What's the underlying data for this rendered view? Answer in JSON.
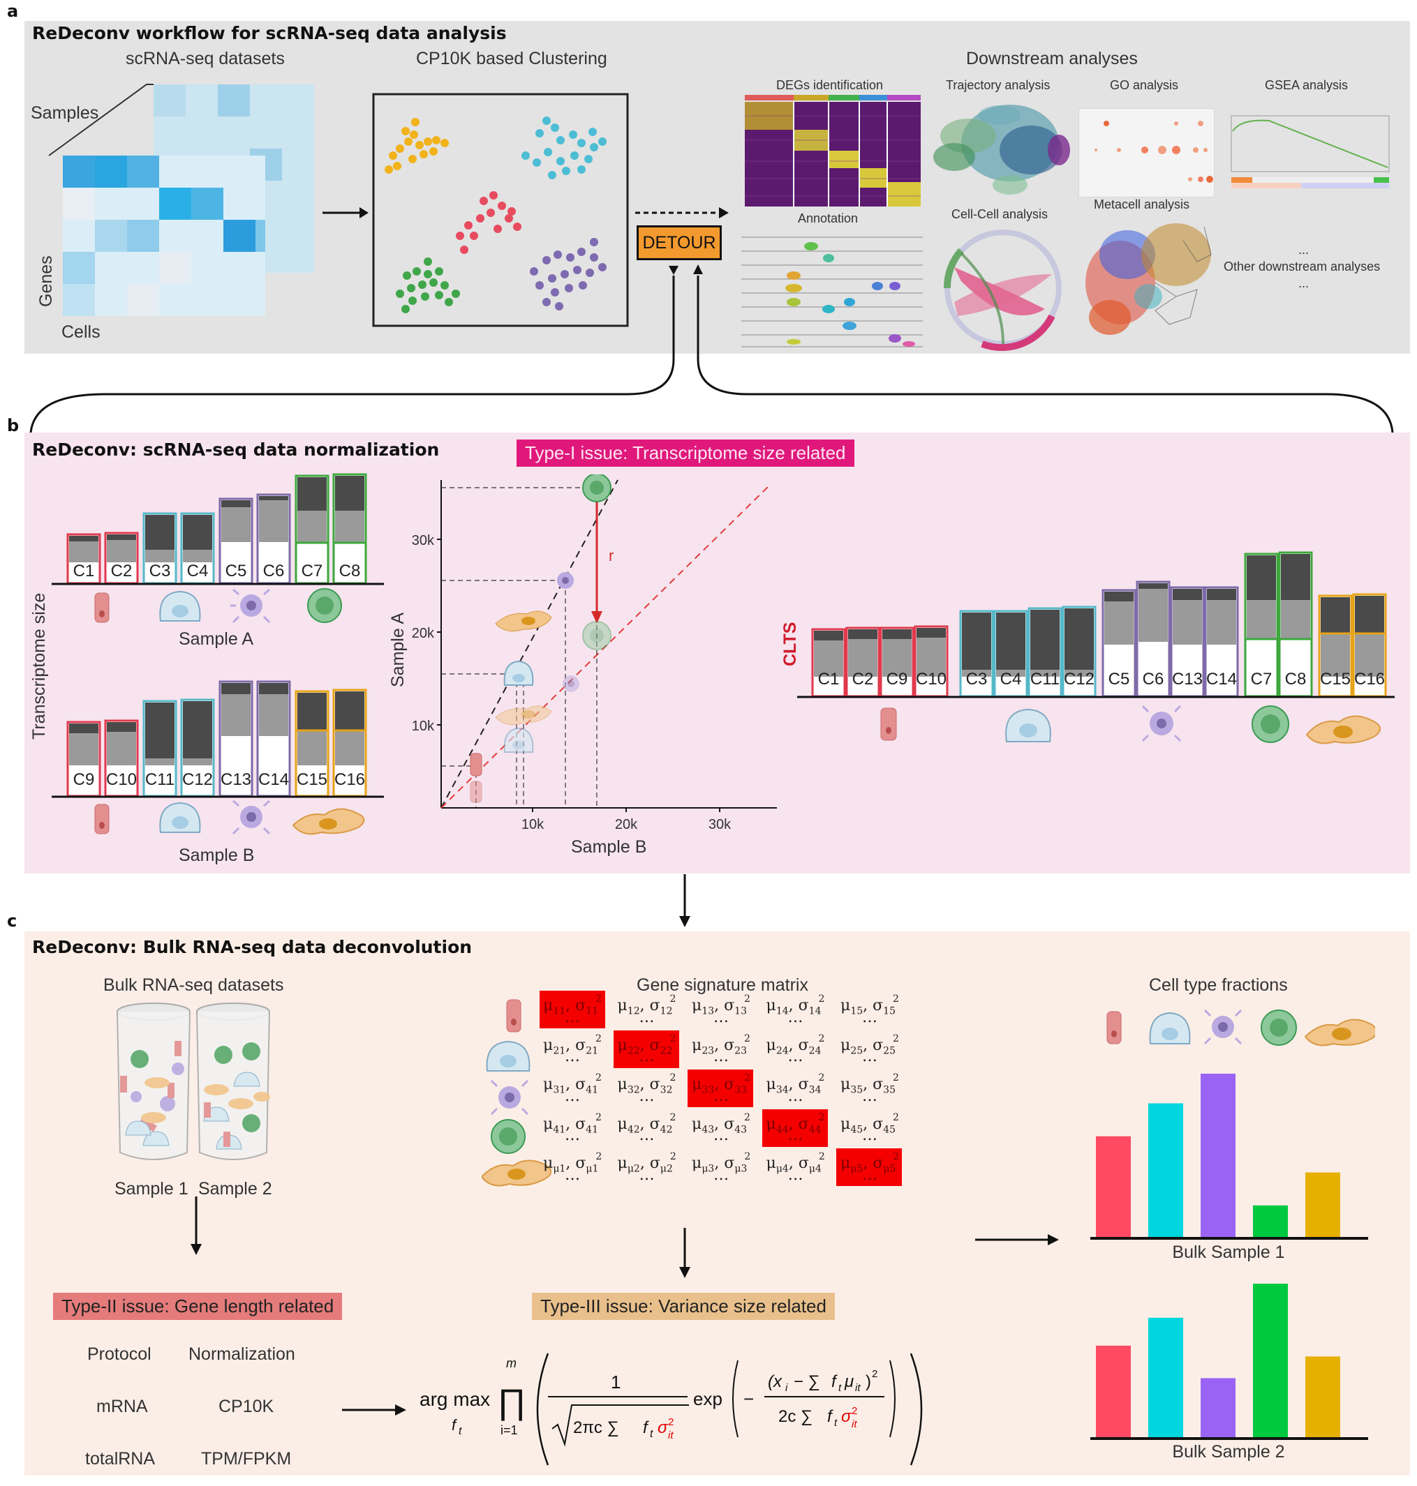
{
  "panel_a": {
    "letter": "a",
    "title": "ReDeconv workflow for scRNA-seq data analysis",
    "datasets_title": "scRNA-seq datasets",
    "samples_label": "Samples",
    "genes_label": "Genes",
    "cells_label": "Cells",
    "clustering_title": "CP10K based Clustering",
    "detour_label": "DETOUR",
    "downstream_title": "Downstream analyses",
    "degs": "DEGs identification",
    "trajectory": "Trajectory analysis",
    "go": "GO analysis",
    "gsea": "GSEA analysis",
    "annotation": "Annotation",
    "cellcell": "Cell-Cell analysis",
    "metacell": "Metacell analysis",
    "other_dots_top": "...",
    "other": "Other downstream analyses",
    "other_dots_bottom": "..."
  },
  "panel_b": {
    "letter": "b",
    "title": "ReDeconv: scRNA-seq data normalization",
    "issue": "Type-I issue: Transcriptome size related",
    "y_axis_label": "Transcriptome size",
    "sample_a": "Sample A",
    "sample_b": "Sample B",
    "clts_label": "CLTS",
    "sample_a_clusters": [
      "C1",
      "C2",
      "C3",
      "C4",
      "C5",
      "C6",
      "C7",
      "C8"
    ],
    "sample_b_clusters": [
      "C9",
      "C10",
      "C11",
      "C12",
      "C13",
      "C14",
      "C15",
      "C16"
    ],
    "clts_clusters": [
      "C1",
      "C2",
      "C9",
      "C10",
      "C3",
      "C4",
      "C11",
      "C12",
      "C5",
      "C6",
      "C13",
      "C14",
      "C7",
      "C8",
      "C15",
      "C16"
    ],
    "scatter": {
      "x_label": "Sample B",
      "y_label": "Sample A",
      "x_ticks": [
        "10k",
        "20k",
        "30k"
      ],
      "y_ticks": [
        "10k",
        "20k",
        "30k"
      ],
      "arrow_label": "r"
    }
  },
  "panel_c": {
    "letter": "c",
    "title": "ReDeconv: Bulk RNA-seq data deconvolution",
    "bulk_title": "Bulk RNA-seq datasets",
    "sample1": "Sample 1",
    "sample2": "Sample 2",
    "matrix_title": "Gene signature matrix",
    "fractions_title": "Cell type fractions",
    "issue2": "Type-II issue: Gene length related",
    "issue3": "Type-III issue: Variance size related",
    "table_headers": [
      "Protocol",
      "Normalization"
    ],
    "table_rows": [
      [
        "mRNA",
        "CP10K"
      ],
      [
        "totalRNA",
        "TPM/FPKM"
      ]
    ],
    "matrix_rows": [
      [
        [
          "11",
          "12",
          "13",
          "14",
          "15"
        ],
        [
          "11",
          "12",
          "13",
          "14",
          "15"
        ]
      ],
      [
        [
          "21",
          "22",
          "23",
          "24",
          "25"
        ],
        [
          "21",
          "22",
          "23",
          "24",
          "25"
        ]
      ],
      [
        [
          "31",
          "32",
          "33",
          "34",
          "35"
        ],
        [
          "41",
          "32",
          "33",
          "34",
          "35"
        ]
      ],
      [
        [
          "41",
          "42",
          "43",
          "44",
          "45"
        ],
        [
          "41",
          "42",
          "43",
          "44",
          "45"
        ]
      ],
      [
        [
          "μ1",
          "μ2",
          "μ3",
          "μ4",
          "μ5"
        ],
        [
          "μ1",
          "μ2",
          "μ3",
          "μ4",
          "μ5"
        ]
      ]
    ],
    "bulk1_label": "Bulk Sample 1",
    "bulk2_label": "Bulk Sample 2",
    "formula": {
      "argmax": "arg max",
      "sub": "f",
      "sub_t": "t",
      "prod_top": "m",
      "prod_bottom": "i=1",
      "numerator": "1",
      "sqrt_body": "2πc ∑",
      "exp": "exp"
    }
  },
  "colors": {
    "panel_a_bg": "#e3e3e3",
    "panel_b_bg": "#f7e4ee",
    "panel_c_bg": "#fbeee7",
    "issue1_bg": "#e0187c",
    "issue2_bg": "#e57b7b",
    "issue3_bg": "#e9c08c",
    "detour": "#f39a2e",
    "highlight": "#f40000",
    "red": "#e0394d",
    "cyan": "#55b8c8",
    "purple": "#7d6aa8",
    "green": "#3ca83c",
    "gold": "#e7a316"
  },
  "chart_data": [
    {
      "type": "bar",
      "title": "Bulk Sample 1",
      "categories": [
        "epithelial",
        "round",
        "immune",
        "round-green",
        "fibroblast"
      ],
      "values": [
        0.62,
        0.82,
        1.0,
        0.2,
        0.4
      ]
    },
    {
      "type": "bar",
      "title": "Bulk Sample 2",
      "categories": [
        "epithelial",
        "round",
        "immune",
        "round-green",
        "fibroblast"
      ],
      "values": [
        0.6,
        0.78,
        0.39,
        1.0,
        0.53
      ]
    }
  ]
}
